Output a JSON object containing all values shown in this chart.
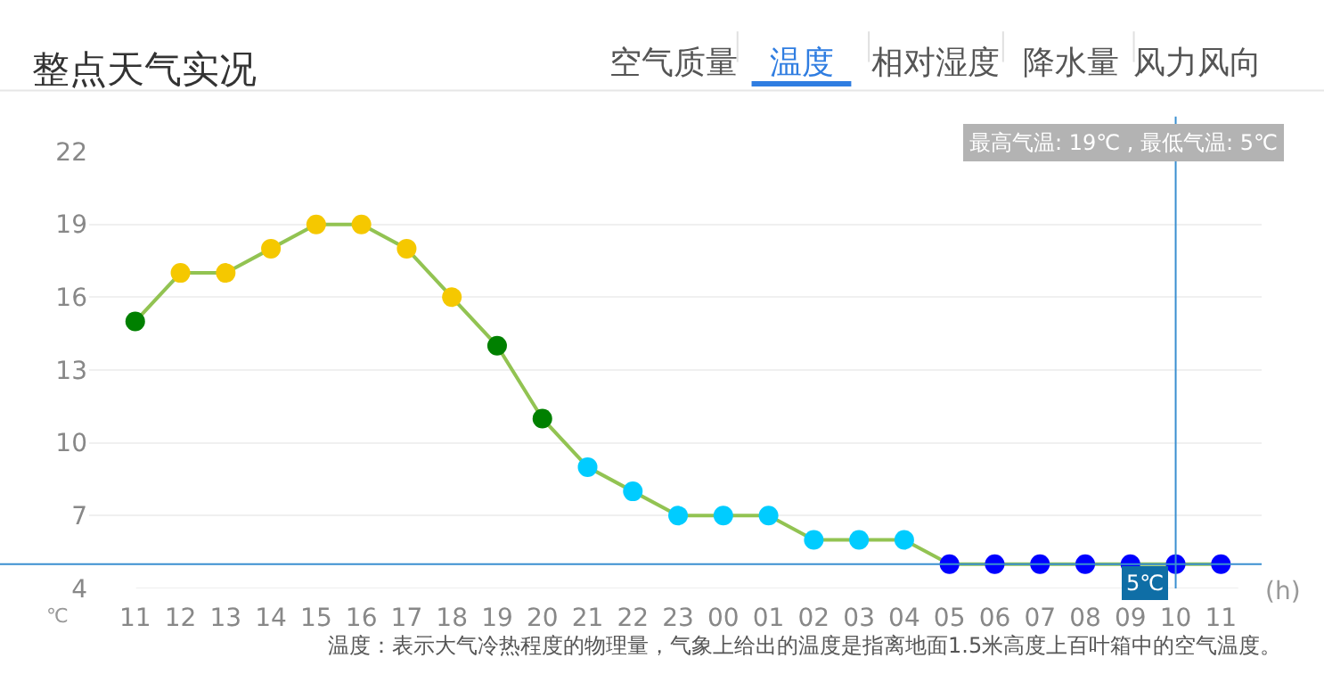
{
  "chart_data": {
    "type": "line",
    "title": "整点天气实况",
    "xlabel": "(h)",
    "ylabel": "℃",
    "categories": [
      "11",
      "12",
      "13",
      "14",
      "15",
      "16",
      "17",
      "18",
      "19",
      "20",
      "21",
      "22",
      "23",
      "00",
      "01",
      "02",
      "03",
      "04",
      "05",
      "06",
      "07",
      "08",
      "09",
      "10",
      "11"
    ],
    "series": [
      {
        "color": "#92c352",
        "values": [
          15,
          17,
          17,
          18,
          19,
          19,
          18,
          16,
          14,
          11,
          9,
          8,
          7,
          7,
          7,
          6,
          6,
          6,
          5,
          5,
          5,
          5,
          5,
          5,
          5
        ],
        "colors": [
          "#008000",
          "#f5c800",
          "#f5c800",
          "#f5c800",
          "#f5c800",
          "#f5c800",
          "#f5c800",
          "#f5c800",
          "#008000",
          "#008000",
          "#00ccff",
          "#00ccff",
          "#00ccff",
          "#00ccff",
          "#00ccff",
          "#00ccff",
          "#00ccff",
          "#00ccff",
          "#0000ff",
          "#0000ff",
          "#0000ff",
          "#0000ff",
          "#0000ff",
          "#0000ff",
          "#0000ff"
        ]
      }
    ],
    "ylim": [
      4,
      22
    ],
    "yticks": [
      4,
      7,
      10,
      13,
      16,
      19,
      22
    ],
    "grid": "y",
    "marker": "circle",
    "line_style": "solid",
    "ref_lines": [
      {
        "axis": "x",
        "value": "10",
        "label": null,
        "color": "#3a8fd0"
      },
      {
        "axis": "y",
        "value": 5,
        "label": "5℃",
        "color": "#3a8fd0"
      }
    ],
    "annotations": [
      "空气质量",
      "温度",
      "相对湿度",
      "降水量",
      "风力风向",
      "最高气温: 19℃ , 最低气温: 5℃",
      "温度：表示大气冷热程度的物理量，气象上给出的温度是指离地面1.5米高度上百叶箱中的空气温度。"
    ]
  }
}
